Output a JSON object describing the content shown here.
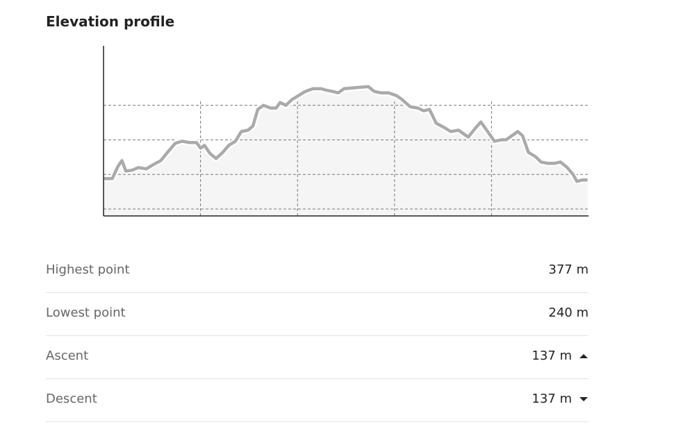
{
  "header": {
    "title": "Elevation profile"
  },
  "chart_data": {
    "type": "line",
    "x": [
      0,
      0.09,
      0.15,
      0.19,
      0.23,
      0.29,
      0.36,
      0.44,
      0.51,
      0.59,
      0.66,
      0.74,
      0.81,
      0.89,
      0.96,
      1.0,
      1.04,
      1.1,
      1.16,
      1.23,
      1.29,
      1.36,
      1.42,
      1.49,
      1.54,
      1.59,
      1.65,
      1.72,
      1.78,
      1.82,
      1.88,
      1.94,
      2.01,
      2.08,
      2.16,
      2.24,
      2.29,
      2.36,
      2.42,
      2.48,
      2.56,
      2.64,
      2.73,
      2.79,
      2.86,
      2.94,
      3.02,
      3.08,
      3.16,
      3.24,
      3.3,
      3.36,
      3.43,
      3.51,
      3.58,
      3.66,
      3.72,
      3.76,
      3.84,
      3.89,
      3.95,
      4.03,
      4.1,
      4.15,
      4.21,
      4.27,
      4.32,
      4.38,
      4.45,
      4.51,
      4.58,
      4.65,
      4.71,
      4.78,
      4.84,
      4.88,
      4.94,
      4.99
    ],
    "values": [
      244,
      244,
      262,
      270,
      255,
      256,
      260,
      258,
      264,
      270,
      282,
      295,
      298,
      296,
      296,
      288,
      292,
      280,
      273,
      282,
      292,
      298,
      312,
      314,
      320,
      344,
      350,
      346,
      346,
      354,
      350,
      358,
      364,
      370,
      374,
      374,
      372,
      370,
      368,
      374,
      375,
      376,
      377,
      370,
      368,
      368,
      364,
      358,
      348,
      346,
      342,
      344,
      324,
      318,
      312,
      314,
      308,
      304,
      318,
      326,
      314,
      298,
      300,
      300,
      306,
      312,
      306,
      282,
      276,
      268,
      266,
      266,
      268,
      260,
      250,
      240,
      242,
      242
    ],
    "color": "#aaaaaa",
    "xlim": [
      0,
      5
    ],
    "xticks": [
      1,
      2,
      3,
      4
    ],
    "ylim": [
      190,
      436
    ],
    "yticks": [
      200,
      250,
      300,
      350
    ],
    "grid": true
  },
  "stats": [
    {
      "label": "Highest point",
      "value": "377 m"
    },
    {
      "label": "Lowest point",
      "value": "240 m"
    },
    {
      "label": "Ascent",
      "value": "137 m"
    },
    {
      "label": "Descent",
      "value": "137 m"
    }
  ]
}
